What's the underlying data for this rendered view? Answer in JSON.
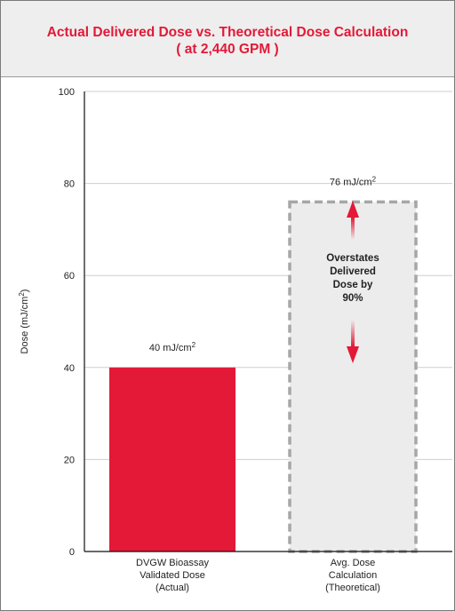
{
  "chart_data": {
    "type": "bar",
    "title_lines": [
      "Actual Delivered Dose vs. Theoretical Dose Calculation",
      "( at 2,440 GPM )"
    ],
    "ylabel": "Dose (mJ/cm",
    "ylabel_superscript": "2",
    "ylabel_suffix": ")",
    "ylim": [
      0,
      100
    ],
    "yticks": [
      0,
      20,
      40,
      60,
      80,
      100
    ],
    "grid": true,
    "categories": [
      [
        "DVGW Bioassay",
        "Validated Dose",
        "(Actual)"
      ],
      [
        "Avg. Dose",
        "Calculation",
        "(Theoretical)"
      ]
    ],
    "values": [
      40,
      76
    ],
    "data_labels": [
      "40 mJ/cm",
      "76 mJ/cm"
    ],
    "data_label_superscript": "2",
    "bar_styles": [
      "solid",
      "dashed-outline"
    ],
    "colors": {
      "actual": "#e31937",
      "theoretical_fill": "#ececec",
      "theoretical_border": "#a6a6a6",
      "arrow": "#e31937",
      "title": "#e31937"
    },
    "annotation": [
      "Overstates",
      "Delivered",
      "Dose by",
      "90%"
    ]
  }
}
